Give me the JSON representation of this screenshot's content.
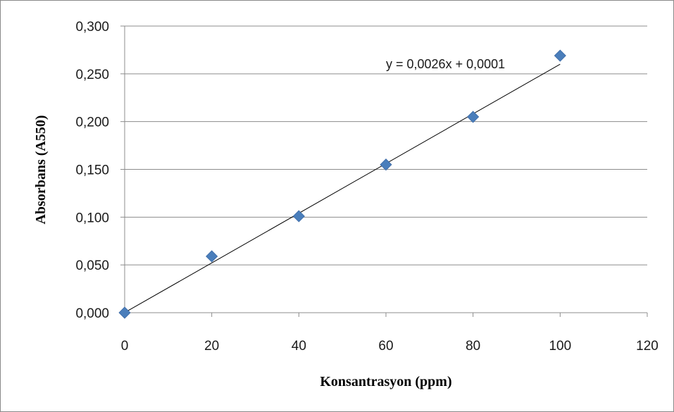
{
  "chart_data": {
    "type": "scatter",
    "title": "",
    "xlabel": "Konsantrasyon (ppm)",
    "ylabel": "Absorbans (A550)",
    "xlim": [
      0,
      120
    ],
    "ylim": [
      0,
      0.3
    ],
    "x_ticks": [
      0,
      20,
      40,
      60,
      80,
      100,
      120
    ],
    "x_tick_labels": [
      "0",
      "20",
      "40",
      "60",
      "80",
      "100",
      "120"
    ],
    "y_ticks": [
      0,
      0.05,
      0.1,
      0.15,
      0.2,
      0.25,
      0.3
    ],
    "y_tick_labels": [
      "0,000",
      "0,050",
      "0,100",
      "0,150",
      "0,200",
      "0,250",
      "0,300"
    ],
    "grid": "horizontal",
    "series": [
      {
        "x": [
          0,
          20,
          40,
          60,
          80,
          100
        ],
        "y": [
          0.0,
          0.059,
          0.101,
          0.155,
          0.205,
          0.269
        ],
        "marker": "diamond",
        "color": "#4a7ebb"
      }
    ],
    "trendline": {
      "slope": 0.0026,
      "intercept": 0.0001,
      "x_range": [
        0,
        100
      ],
      "color": "#000000",
      "label": "y = 0,0026x + 0,0001"
    }
  }
}
